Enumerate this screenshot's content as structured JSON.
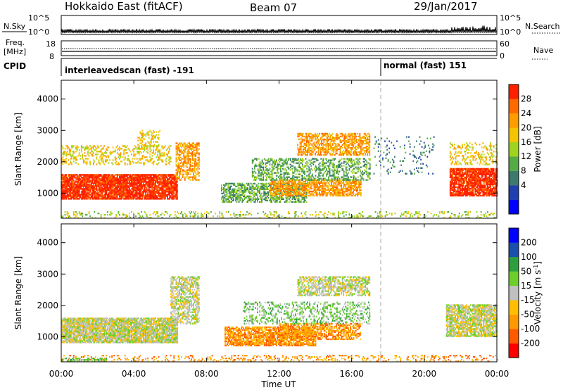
{
  "header": {
    "radar": "Hokkaido East (fitACF)",
    "beam": "Beam 07",
    "date": "29/Jan/2017"
  },
  "nsky_panel": {
    "left_label": "N.Sky",
    "right_label": "N.Search",
    "left_ticks": [
      "10^5",
      "10^0"
    ],
    "right_ticks": [
      "10^5",
      "10^0"
    ]
  },
  "freq_panel": {
    "left_label_1": "Freq.",
    "left_label_2": "[MHz]",
    "right_label": "Nave",
    "left_ticks": [
      "18",
      "8"
    ],
    "right_ticks": [
      "60",
      "0"
    ]
  },
  "cpid": {
    "label": "CPID",
    "segments": [
      {
        "text": "interleavedscan (fast) -191",
        "start_hour": 0
      },
      {
        "text": "normal (fast) 151",
        "start_hour": 18
      }
    ]
  },
  "chart_data": [
    {
      "type": "heatmap",
      "quantity": "power",
      "ylabel": "Slant Range [km]",
      "ylim": [
        200,
        4600
      ],
      "yticks": [
        "1000",
        "2000",
        "3000",
        "4000"
      ],
      "ytick_values": [
        1000,
        2000,
        3000,
        4000
      ],
      "xlim": [
        0,
        24
      ],
      "colorbar": {
        "label": "Power [dB]",
        "ticks": [
          "28",
          "24",
          "20",
          "16",
          "12",
          "8",
          "4"
        ],
        "colors": [
          "#0000ff",
          "#1f3fae",
          "#3d7a6e",
          "#55ab45",
          "#9ed41e",
          "#f4c400",
          "#ff9c00",
          "#ff6a00",
          "#ff2000"
        ]
      },
      "regions": [
        {
          "t0": 0.0,
          "t1": 6.4,
          "r0": 800,
          "r1": 1600,
          "level": 8,
          "density": 0.9
        },
        {
          "t0": 0.0,
          "t1": 6.0,
          "r0": 1900,
          "r1": 2500,
          "level": 5,
          "density": 0.3
        },
        {
          "t0": 6.3,
          "t1": 7.6,
          "r0": 1400,
          "r1": 2600,
          "level": 6,
          "density": 0.6
        },
        {
          "t0": 4.2,
          "t1": 5.4,
          "r0": 2300,
          "r1": 3000,
          "level": 5,
          "density": 0.3
        },
        {
          "t0": 8.8,
          "t1": 13.5,
          "r0": 700,
          "r1": 1300,
          "level": 3,
          "density": 0.6
        },
        {
          "t0": 11.5,
          "t1": 16.5,
          "r0": 900,
          "r1": 1400,
          "level": 6,
          "density": 0.7
        },
        {
          "t0": 10.5,
          "t1": 17.0,
          "r0": 1400,
          "r1": 2100,
          "level": 3,
          "density": 0.45
        },
        {
          "t0": 13.0,
          "t1": 17.0,
          "r0": 2200,
          "r1": 2900,
          "level": 6,
          "density": 0.6
        },
        {
          "t0": 17.2,
          "t1": 20.5,
          "r0": 1600,
          "r1": 2800,
          "level": 2,
          "density": 0.1
        },
        {
          "t0": 21.4,
          "t1": 24.0,
          "r0": 900,
          "r1": 1800,
          "level": 8,
          "density": 0.85
        },
        {
          "t0": 21.4,
          "t1": 24.0,
          "r0": 1900,
          "r1": 2600,
          "level": 5,
          "density": 0.3
        },
        {
          "t0": 0.0,
          "t1": 24.0,
          "r0": 200,
          "r1": 400,
          "level": 4,
          "density": 0.2
        }
      ]
    },
    {
      "type": "heatmap",
      "quantity": "velocity",
      "xlabel": "Time UT",
      "ylabel": "Slant Range [km]",
      "ylim": [
        200,
        4600
      ],
      "yticks": [
        "1000",
        "2000",
        "3000",
        "4000"
      ],
      "ytick_values": [
        1000,
        2000,
        3000,
        4000
      ],
      "xlim": [
        0,
        24
      ],
      "xticks": [
        "00:00",
        "04:00",
        "08:00",
        "12:00",
        "16:00",
        "20:00",
        "00:00"
      ],
      "xtick_values": [
        0,
        4,
        8,
        12,
        16,
        20,
        24
      ],
      "colorbar": {
        "label": "Velocity [m s-1]",
        "ticks": [
          "200",
          "100",
          "50",
          "15",
          "-15",
          "-50",
          "-100",
          "-200"
        ],
        "colors": [
          "#ff0000",
          "#ff5a00",
          "#ff9900",
          "#ffbf00",
          "#c0c0c0",
          "#6ccf2a",
          "#2f9e3f",
          "#1b4fae",
          "#0000ff"
        ]
      },
      "regions": [
        {
          "t0": 0.0,
          "t1": 6.4,
          "r0": 800,
          "r1": 1600,
          "level": 4,
          "density": 0.9
        },
        {
          "t0": 6.0,
          "t1": 7.6,
          "r0": 1400,
          "r1": 2900,
          "level": 4,
          "density": 0.6
        },
        {
          "t0": 9.0,
          "t1": 14.0,
          "r0": 700,
          "r1": 1300,
          "level": 2,
          "density": 0.75
        },
        {
          "t0": 12.0,
          "t1": 16.5,
          "r0": 900,
          "r1": 1400,
          "level": 2,
          "density": 0.6
        },
        {
          "t0": 10.0,
          "t1": 17.0,
          "r0": 1400,
          "r1": 2100,
          "level": 5,
          "density": 0.3
        },
        {
          "t0": 13.0,
          "t1": 17.0,
          "r0": 2300,
          "r1": 2900,
          "level": 4,
          "density": 0.6
        },
        {
          "t0": 21.2,
          "t1": 24.0,
          "r0": 1000,
          "r1": 2000,
          "level": 4,
          "density": 0.8
        },
        {
          "t0": 0.0,
          "t1": 24.0,
          "r0": 200,
          "r1": 400,
          "level": 2,
          "density": 0.2
        },
        {
          "t0": 0.0,
          "t1": 2.5,
          "r0": 200,
          "r1": 300,
          "level": 5,
          "density": 0.5
        }
      ]
    }
  ]
}
